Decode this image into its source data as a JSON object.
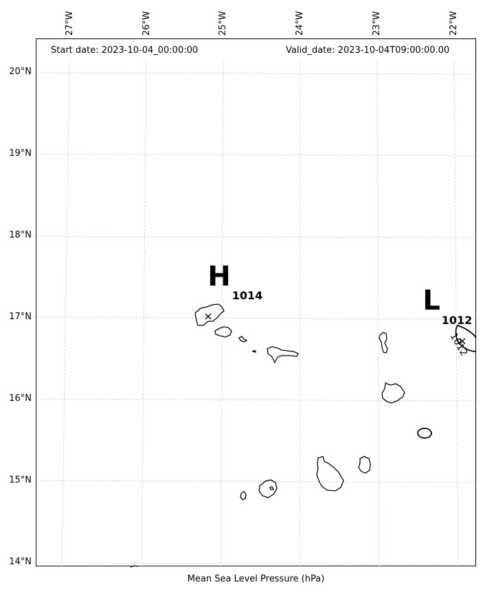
{
  "header": {
    "start_date": "Start date: 2023-10-04_00:00:00",
    "valid_date": "Valid_date: 2023-10-04T09:00:00.00"
  },
  "longitude_labels": [
    "27°W",
    "26°W",
    "25°W",
    "24°W",
    "23°W",
    "22°W"
  ],
  "latitude_labels": [
    "20°N",
    "19°N",
    "18°N",
    "17°N",
    "16°N",
    "15°N",
    "14°N"
  ],
  "pressure_centers": [
    {
      "symbol": "H",
      "value": "1014"
    },
    {
      "symbol": "L",
      "value": "1012"
    }
  ],
  "contour_label": "1012",
  "caption": "Mean Sea Level Pressure (hPa)",
  "colors": {
    "gridline": "#cccccc",
    "coastline": "#000000",
    "isobar": "#000000"
  }
}
